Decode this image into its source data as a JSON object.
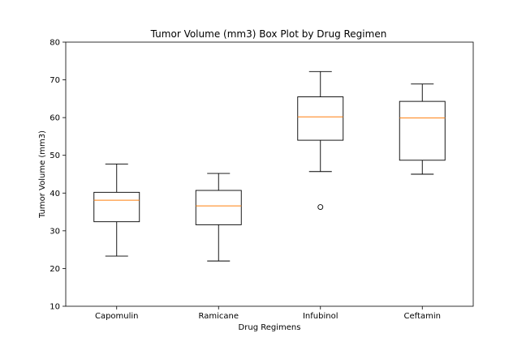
{
  "chart_data": {
    "type": "box",
    "title": "Tumor Volume (mm3) Box Plot by Drug Regimen",
    "xlabel": "Drug Regimens",
    "ylabel": "Tumor Volume (mm3)",
    "ylim": [
      10,
      80
    ],
    "yticks": [
      10,
      20,
      30,
      40,
      50,
      60,
      70,
      80
    ],
    "grid": false,
    "categories": [
      "Capomulin",
      "Ramicane",
      "Infubinol",
      "Ceftamin"
    ],
    "boxes": [
      {
        "category": "Capomulin",
        "whisker_low": 23.3,
        "q1": 32.4,
        "median": 38.1,
        "q3": 40.2,
        "whisker_high": 47.7,
        "outliers": []
      },
      {
        "category": "Ramicane",
        "whisker_low": 22.0,
        "q1": 31.6,
        "median": 36.6,
        "q3": 40.7,
        "whisker_high": 45.2,
        "outliers": []
      },
      {
        "category": "Infubinol",
        "whisker_low": 45.7,
        "q1": 54.0,
        "median": 60.2,
        "q3": 65.5,
        "whisker_high": 72.2,
        "outliers": [
          36.3
        ]
      },
      {
        "category": "Ceftamin",
        "whisker_low": 45.0,
        "q1": 48.7,
        "median": 59.9,
        "q3": 64.3,
        "whisker_high": 68.9,
        "outliers": []
      }
    ],
    "colors": {
      "box": "#000000",
      "median": "#ff7f0e",
      "outlier": "#000000"
    }
  }
}
